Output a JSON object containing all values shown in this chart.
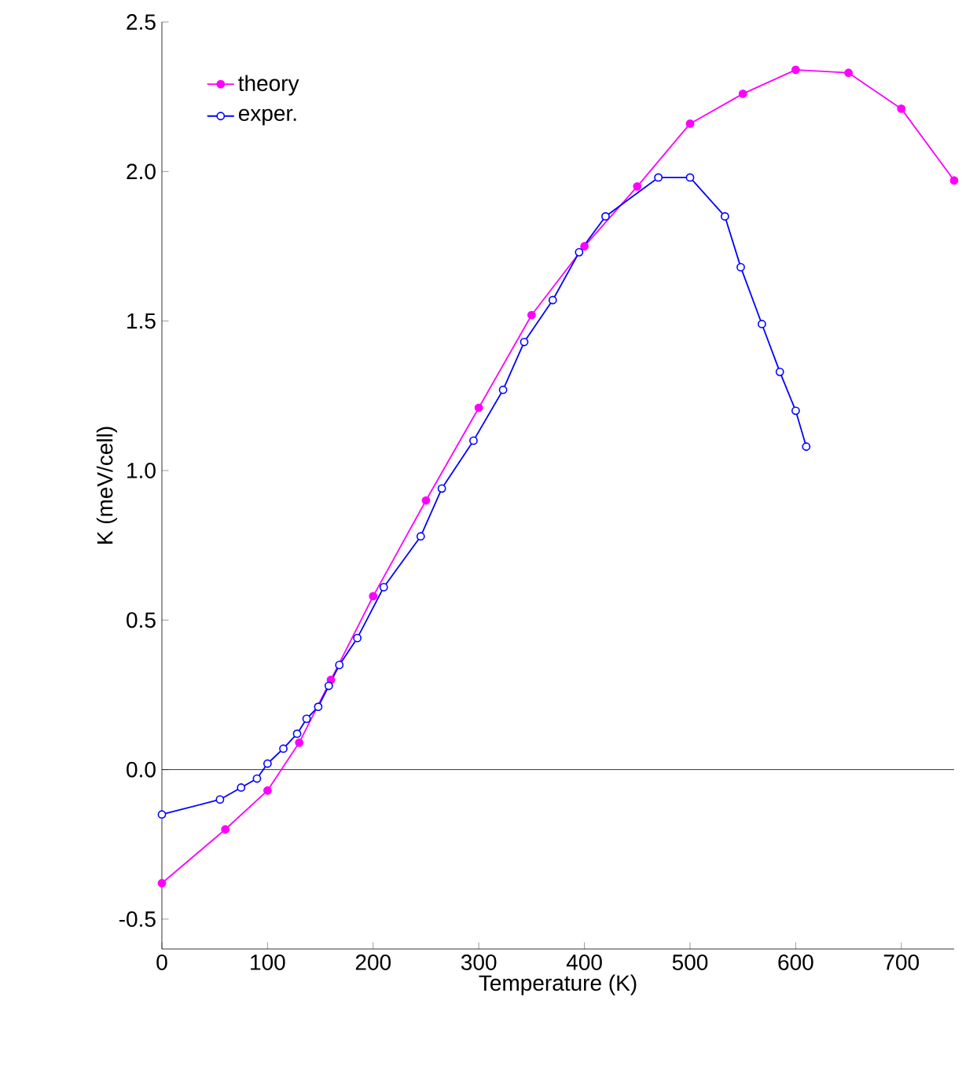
{
  "chart_data": {
    "type": "line",
    "xlabel": "Temperature  (K)",
    "ylabel": "K   (meV/cell)",
    "xlim": [
      0,
      750
    ],
    "ylim": [
      -0.6,
      2.5
    ],
    "xticks": [
      0,
      100,
      200,
      300,
      400,
      500,
      600,
      700
    ],
    "yticks": [
      {
        "value": -0.5,
        "label": "-0.5"
      },
      {
        "value": 0,
        "label": "0.0"
      },
      {
        "value": 0.5,
        "label": "0.5"
      },
      {
        "value": 1,
        "label": "1.0"
      },
      {
        "value": 1.5,
        "label": "1.5"
      },
      {
        "value": 2,
        "label": "2.0"
      },
      {
        "value": 2.5,
        "label": "2.5"
      }
    ],
    "legend": "top left",
    "marker": "circle",
    "line_style": "solid",
    "grid": false,
    "ref_lines": [
      {
        "axis": "y",
        "value": 0,
        "color": "#000000"
      }
    ],
    "series": [
      {
        "name": "theory",
        "color": "#ff00ff",
        "x": [
          0,
          60,
          100,
          130,
          160,
          200,
          250,
          300,
          350,
          400,
          450,
          500,
          550,
          600,
          650,
          700,
          750
        ],
        "values": [
          -0.38,
          -0.2,
          -0.07,
          0.09,
          0.3,
          0.58,
          0.9,
          1.21,
          1.52,
          1.75,
          1.95,
          2.16,
          2.26,
          2.34,
          2.33,
          2.21,
          1.97
        ]
      },
      {
        "name": "exper.",
        "color": "#0000ff",
        "x": [
          0,
          55,
          75,
          90,
          100,
          115,
          128,
          137,
          148,
          158,
          168,
          185,
          210,
          245,
          265,
          295,
          323,
          343,
          370,
          395,
          420,
          470,
          500,
          533,
          548,
          568,
          585,
          600,
          610
        ],
        "values": [
          -0.15,
          -0.1,
          -0.06,
          -0.03,
          0.02,
          0.07,
          0.12,
          0.17,
          0.21,
          0.28,
          0.35,
          0.44,
          0.61,
          0.78,
          0.94,
          1.1,
          1.27,
          1.43,
          1.57,
          1.73,
          1.85,
          1.98,
          1.98,
          1.85,
          1.68,
          1.49,
          1.33,
          1.2,
          1.08
        ]
      }
    ]
  }
}
